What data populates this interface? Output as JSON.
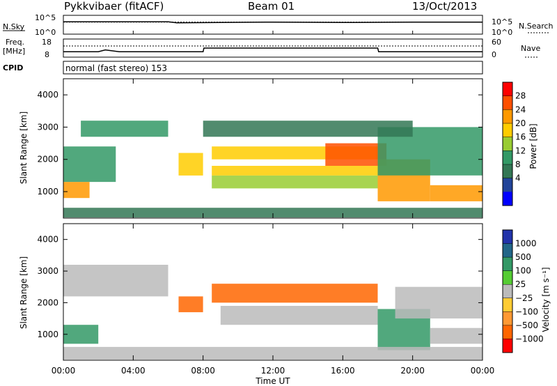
{
  "header": {
    "station": "Pykkvibaer (fitACF)",
    "beam": "Beam 01",
    "date": "13/Oct/2013"
  },
  "top_panels": {
    "nsky_label": "N.Sky",
    "nsky_ticks": [
      "10^5",
      "10^0"
    ],
    "nsearch_label": "N.Search",
    "nsearch_ticks": [
      "10^5",
      "10^0"
    ],
    "freq_label": "Freq.",
    "freq_unit": "[MHz]",
    "freq_ticks": [
      "18",
      "8"
    ],
    "nave_label": "Nave",
    "nave_ticks": [
      "60",
      "0"
    ],
    "cpid_label": "CPID",
    "cpid_text": "normal (fast stereo) 153"
  },
  "axes": {
    "ylabel": "Slant Range [km]",
    "yticks": [
      "4000",
      "3000",
      "2000",
      "1000"
    ],
    "xticks": [
      "00:00",
      "04:00",
      "08:00",
      "12:00",
      "16:00",
      "20:00",
      "00:00"
    ],
    "xlabel": "Time UT"
  },
  "colorbars": {
    "power": {
      "label": "Power [dB]",
      "ticks": [
        "28",
        "24",
        "20",
        "16",
        "12",
        "8",
        "4"
      ],
      "colors": [
        "#ff0000",
        "#ff5000",
        "#ff9900",
        "#ffcc00",
        "#99cc33",
        "#339966",
        "#337755",
        "#224499",
        "#0000ff"
      ]
    },
    "velocity": {
      "label": "Velocity [m s⁻¹]",
      "ticks": [
        "1000",
        "500",
        "100",
        "25",
        "−25",
        "−100",
        "−500",
        "−1000"
      ],
      "colors": [
        "#2233aa",
        "#226688",
        "#339966",
        "#55cc33",
        "#bbbbbb",
        "#ffcc33",
        "#ff9933",
        "#ff6600",
        "#ff0000"
      ]
    }
  },
  "chart_data": {
    "type": "heatmap",
    "x_range_hours": [
      0,
      24
    ],
    "y_range_km": [
      180,
      4500
    ],
    "nsky": [
      [
        0,
        3.3
      ],
      [
        6,
        3.3
      ],
      [
        6.5,
        3.0
      ],
      [
        12,
        3.2
      ],
      [
        16,
        3.1
      ],
      [
        20,
        3.2
      ],
      [
        24,
        3.2
      ]
    ],
    "freq_mhz": [
      [
        0,
        11
      ],
      [
        2,
        11
      ],
      [
        2.4,
        12
      ],
      [
        3.2,
        11
      ],
      [
        8,
        11
      ],
      [
        8.05,
        13
      ],
      [
        18,
        13
      ],
      [
        18.05,
        11
      ],
      [
        24,
        11
      ]
    ],
    "nave_const": 45,
    "power_bands": [
      {
        "t0": 0,
        "t1": 1.5,
        "r0": 800,
        "r1": 1300,
        "db": 24
      },
      {
        "t0": 0,
        "t1": 3,
        "r0": 1300,
        "r1": 2400,
        "db": 10
      },
      {
        "t0": 1,
        "t1": 6,
        "r0": 2700,
        "r1": 3200,
        "db": 10
      },
      {
        "t0": 6.6,
        "t1": 8,
        "r0": 1500,
        "r1": 2200,
        "db": 20
      },
      {
        "t0": 8.5,
        "t1": 18,
        "r0": 1100,
        "r1": 1500,
        "db": 14
      },
      {
        "t0": 8.5,
        "t1": 18,
        "r0": 1500,
        "r1": 1800,
        "db": 18
      },
      {
        "t0": 8.5,
        "t1": 18,
        "r0": 2000,
        "r1": 2400,
        "db": 20
      },
      {
        "t0": 15,
        "t1": 18.5,
        "r0": 1800,
        "r1": 2500,
        "db": 26
      },
      {
        "t0": 18,
        "t1": 21,
        "r0": 700,
        "r1": 2000,
        "db": 24
      },
      {
        "t0": 18,
        "t1": 24,
        "r0": 1500,
        "r1": 3000,
        "db": 12
      },
      {
        "t0": 21,
        "t1": 24,
        "r0": 700,
        "r1": 1200,
        "db": 24
      },
      {
        "t0": 0,
        "t1": 24,
        "r0": 200,
        "r1": 500,
        "db": 6
      },
      {
        "t0": 8,
        "t1": 20,
        "r0": 2700,
        "r1": 3200,
        "db": 8
      }
    ],
    "velocity_bands": [
      {
        "t0": 0,
        "t1": 6,
        "r0": 2200,
        "r1": 3200,
        "v": 0
      },
      {
        "t0": 0,
        "t1": 2,
        "r0": 700,
        "r1": 1300,
        "v": 80
      },
      {
        "t0": 6.6,
        "t1": 8,
        "r0": 1700,
        "r1": 2200,
        "v": -500
      },
      {
        "t0": 8.5,
        "t1": 18,
        "r0": 2000,
        "r1": 2600,
        "v": -500
      },
      {
        "t0": 9,
        "t1": 18,
        "r0": 1300,
        "r1": 1900,
        "v": 0
      },
      {
        "t0": 18,
        "t1": 21,
        "r0": 500,
        "r1": 1800,
        "v": 150
      },
      {
        "t0": 19,
        "t1": 24,
        "r0": 1500,
        "r1": 2500,
        "v": 0
      },
      {
        "t0": 21,
        "t1": 24,
        "r0": 700,
        "r1": 1200,
        "v": 0
      },
      {
        "t0": 0,
        "t1": 24,
        "r0": 200,
        "r1": 600,
        "v": 10
      }
    ]
  }
}
